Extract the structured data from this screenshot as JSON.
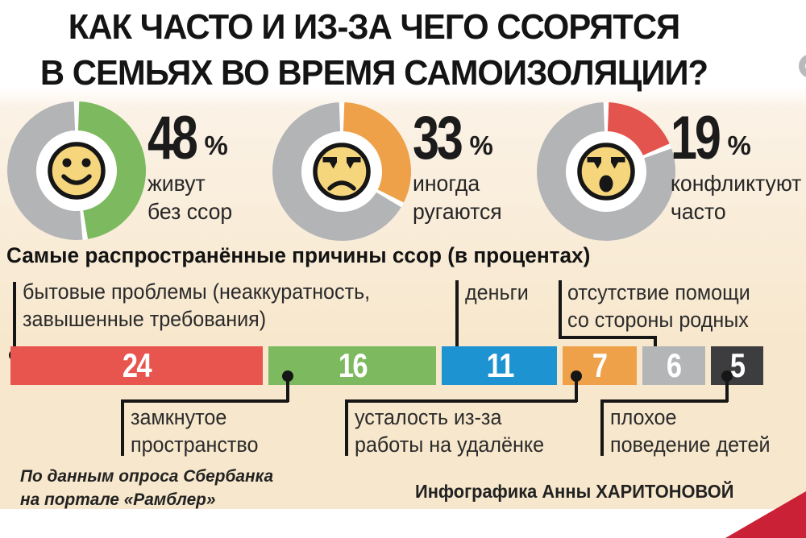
{
  "title": {
    "line1": "КАК ЧАСТО И ИЗ-ЗА ЧЕГО ССОРЯТСЯ",
    "line2": "В СЕМЬЯХ ВО ВРЕМЯ САМОИЗОЛЯЦИИ?"
  },
  "donuts": [
    {
      "value": "48",
      "unit": "%",
      "label1": "живут",
      "label2": "без ссор",
      "percent": 48,
      "color": "#7db95f",
      "face": "happy",
      "face_icon": "smiley-happy-icon"
    },
    {
      "value": "33",
      "unit": "%",
      "label1": "иногда",
      "label2": "ругаются",
      "percent": 33,
      "color": "#efa14a",
      "face": "annoyed",
      "face_icon": "smiley-annoyed-icon"
    },
    {
      "value": "19",
      "unit": "%",
      "label1": "конфликтуют",
      "label2": "часто",
      "percent": 19,
      "color": "#e4544e",
      "face": "shout",
      "face_icon": "smiley-shouting-icon"
    }
  ],
  "colors": {
    "donut_rest": "#b3b4b6",
    "background_cream": "#f7e7cc",
    "accent_red": "#cb2136",
    "face_yellow": "#f6d67d"
  },
  "causes_heading": "Самые распространённые причины ссор (в процентах)",
  "cause_labels": {
    "household": {
      "line1": "бытовые проблемы (неаккуратность,",
      "line2": "завышенные требования)"
    },
    "money": {
      "line1": "деньги"
    },
    "no_help": {
      "line1": "отсутствие помощи",
      "line2": "со стороны родных"
    },
    "confined": {
      "line1": "замкнутое",
      "line2": "пространство"
    },
    "remote_work": {
      "line1": "усталость из-за",
      "line2": "работы на удалёнке"
    },
    "children": {
      "line1": "плохое",
      "line2": "поведение детей"
    }
  },
  "bar": {
    "segments": [
      {
        "value": 24,
        "color": "#e8544e"
      },
      {
        "value": 16,
        "color": "#7db95f"
      },
      {
        "value": 11,
        "color": "#1e93d1"
      },
      {
        "value": 7,
        "color": "#efa14a"
      },
      {
        "value": 6,
        "color": "#b4b5b7"
      },
      {
        "value": 5,
        "color": "#3d3d3f"
      }
    ]
  },
  "footer": {
    "source_line1": "По данным опроса Сбербанка",
    "source_line2": "на портале «Рамблер»",
    "credit": "Инфографика Анны ХАРИТОНОВОЙ"
  },
  "chart_data": [
    {
      "type": "pie",
      "title": "Как часто ссорятся в семьях во время самоизоляции",
      "slices": [
        {
          "label": "живут без ссор",
          "value": 48,
          "color": "#7db95f"
        },
        {
          "label": "иногда ругаются",
          "value": 33,
          "color": "#efa14a"
        },
        {
          "label": "конфликтуют часто",
          "value": 19,
          "color": "#e4544e"
        }
      ]
    },
    {
      "type": "bar",
      "title": "Самые распространённые причины ссор (в процентах)",
      "categories": [
        "бытовые проблемы (неаккуратность, завышенные требования)",
        "замкнутое пространство",
        "деньги",
        "усталость из-за работы на удалёнке",
        "отсутствие помощи со стороны родных",
        "плохое поведение детей"
      ],
      "values": [
        24,
        16,
        11,
        7,
        6,
        5
      ],
      "colors": [
        "#e8544e",
        "#7db95f",
        "#1e93d1",
        "#efa14a",
        "#b4b5b7",
        "#3d3d3f"
      ],
      "xlabel": "",
      "ylabel": "",
      "ylim": [
        0,
        24
      ],
      "grid": false,
      "legend": false
    }
  ]
}
